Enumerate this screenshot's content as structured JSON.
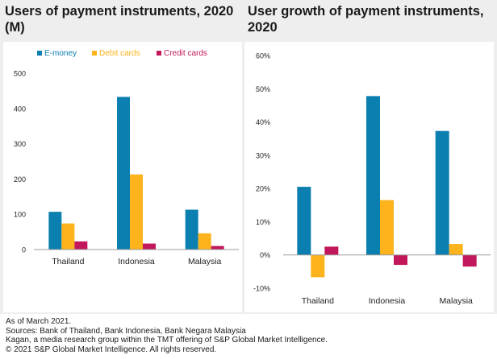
{
  "chart_data": [
    {
      "type": "bar",
      "title": "Users of payment instruments, 2020 (M)",
      "categories": [
        "Thailand",
        "Indonesia",
        "Malaysia"
      ],
      "series": [
        {
          "name": "E-money",
          "color": "#0a7fb0",
          "values": [
            107,
            433,
            113
          ]
        },
        {
          "name": "Debit cards",
          "color": "#fdb31b",
          "values": [
            74,
            213,
            46
          ]
        },
        {
          "name": "Credit cards",
          "color": "#c2185b",
          "values": [
            23,
            17,
            10
          ]
        }
      ],
      "xlabel": "",
      "ylabel": "",
      "ylim": [
        0,
        500
      ],
      "yticks": [
        0,
        100,
        200,
        300,
        400,
        500
      ],
      "ytick_labels": [
        "0",
        "100",
        "200",
        "300",
        "400",
        "500"
      ],
      "legend": "top-left",
      "grid": false
    },
    {
      "type": "bar",
      "title": "User growth of payment instruments, 2020",
      "categories": [
        "Thailand",
        "Indonesia",
        "Malaysia"
      ],
      "series": [
        {
          "name": "E-money",
          "color": "#0a7fb0",
          "values": [
            20.5,
            47.8,
            37.3
          ]
        },
        {
          "name": "Debit cards",
          "color": "#fdb31b",
          "values": [
            -6.7,
            16.5,
            3.3
          ]
        },
        {
          "name": "Credit cards",
          "color": "#c2185b",
          "values": [
            2.5,
            -3.0,
            -3.5
          ]
        }
      ],
      "xlabel": "",
      "ylabel": "",
      "ylim": [
        -10,
        60
      ],
      "yticks": [
        -10,
        0,
        10,
        20,
        30,
        40,
        50,
        60
      ],
      "ytick_labels": [
        "-10%",
        "0%",
        "10%",
        "20%",
        "30%",
        "40%",
        "50%",
        "60%"
      ],
      "grid": false
    }
  ],
  "footer": {
    "line1": "As of March 2021.",
    "line2": "Sources: Bank of Thailand, Bank Indonesia, Bank Negara Malaysia",
    "line3": "Kagan, a media research group within the TMT offering of S&P Global Market Intelligence.",
    "line4": "© 2021 S&P Global Market Intelligence. All rights reserved."
  }
}
